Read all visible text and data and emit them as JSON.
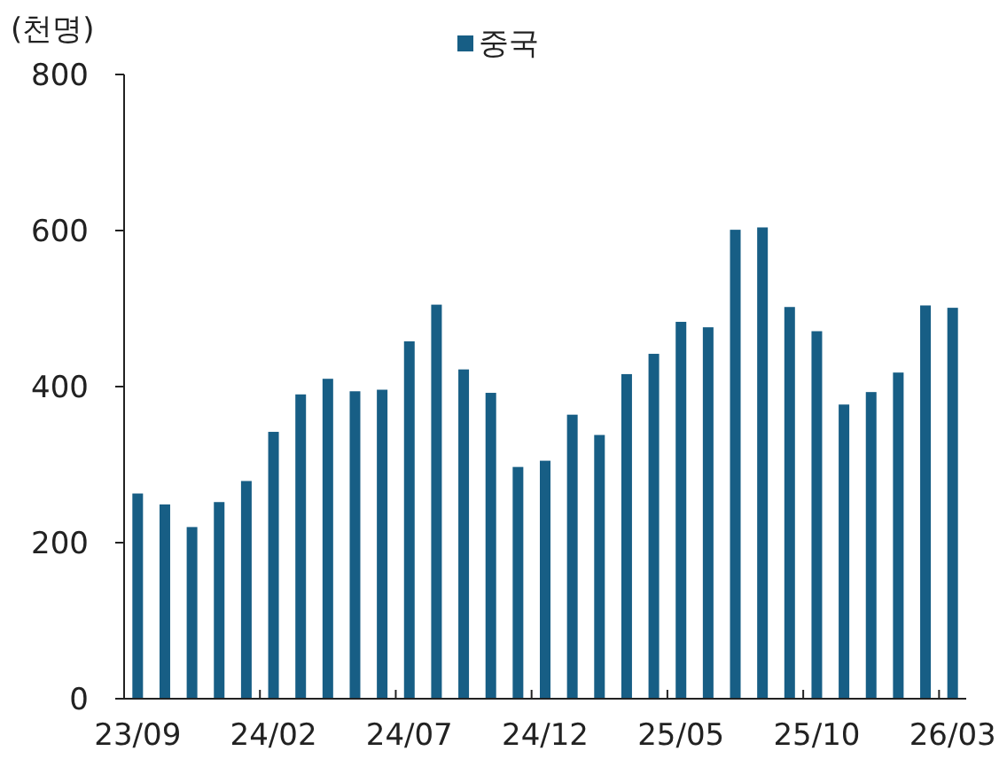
{
  "chart_data": {
    "type": "bar",
    "ylabel": "(천명)",
    "categories": [
      "23/09",
      null,
      null,
      null,
      null,
      "24/02",
      null,
      null,
      null,
      null,
      "24/07",
      null,
      null,
      null,
      null,
      "24/12",
      null,
      null,
      null,
      null,
      "25/05",
      null,
      null,
      null,
      null,
      "25/10",
      null,
      null,
      null,
      null,
      "26/03"
    ],
    "series": [
      {
        "name": "중국",
        "color": "#175e85",
        "values": [
          263,
          249,
          220,
          252,
          279,
          342,
          390,
          410,
          394,
          396,
          458,
          505,
          422,
          392,
          297,
          305,
          364,
          338,
          416,
          442,
          483,
          476,
          601,
          604,
          502,
          471,
          377,
          393,
          418,
          504,
          501
        ]
      }
    ],
    "ylim": [
      0,
      800
    ],
    "yticks": [
      0,
      200,
      400,
      600,
      800
    ],
    "legend": "top",
    "grid": false
  }
}
